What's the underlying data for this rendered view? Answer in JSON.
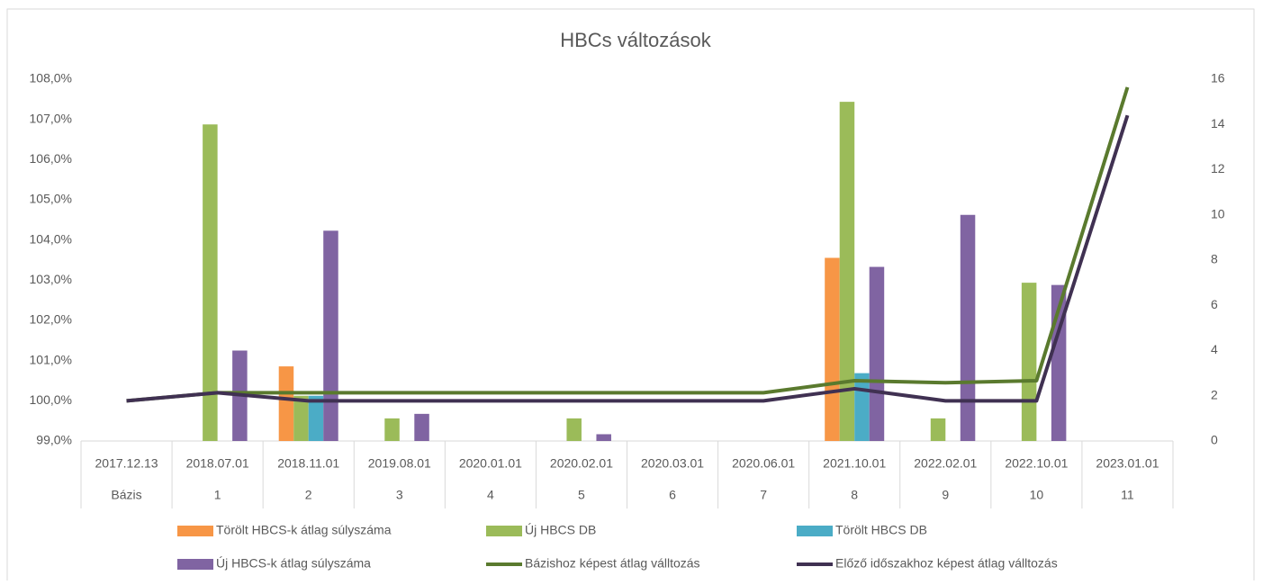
{
  "chart_data": {
    "type": "bar_line",
    "title": "HBCs változások",
    "categories": [
      "2017.12.13",
      "2018.07.01",
      "2018.11.01",
      "2019.08.01",
      "2020.01.01",
      "2020.02.01",
      "2020.03.01",
      "2020.06.01",
      "2021.10.01",
      "2022.02.01",
      "2022.10.01",
      "2023.01.01"
    ],
    "category_labels": [
      "Bázis",
      "1",
      "2",
      "3",
      "4",
      "5",
      "6",
      "7",
      "8",
      "9",
      "10",
      "11"
    ],
    "ylim": [
      99,
      108
    ],
    "yticks": [
      {
        "value": 99,
        "label": "99,0%"
      },
      {
        "value": 100,
        "label": "100,0%"
      },
      {
        "value": 101,
        "label": "101,0%"
      },
      {
        "value": 102,
        "label": "102,0%"
      },
      {
        "value": 103,
        "label": "103,0%"
      },
      {
        "value": 104,
        "label": "104,0%"
      },
      {
        "value": 105,
        "label": "105,0%"
      },
      {
        "value": 106,
        "label": "106,0%"
      },
      {
        "value": 107,
        "label": "107,0%"
      },
      {
        "value": 108,
        "label": "108,0%"
      }
    ],
    "y2lim": [
      0,
      16
    ],
    "y2ticks": [
      0,
      2,
      4,
      6,
      8,
      10,
      12,
      14,
      16
    ],
    "series": [
      {
        "name": "Törölt HBCS-k átlag súlyszáma",
        "kind": "bar",
        "axis": "y2",
        "color": "#f79646",
        "values": [
          null,
          null,
          3.3,
          null,
          null,
          null,
          null,
          null,
          8.1,
          null,
          null,
          null
        ]
      },
      {
        "name": "Új HBCS DB",
        "kind": "bar",
        "axis": "y2",
        "color": "#9bbb59",
        "values": [
          null,
          14,
          2,
          1,
          null,
          1,
          null,
          null,
          15,
          1,
          7,
          null
        ]
      },
      {
        "name": "Törölt HBCS DB",
        "kind": "bar",
        "axis": "y2",
        "color": "#4bacc6",
        "values": [
          null,
          null,
          2,
          null,
          null,
          null,
          null,
          null,
          3,
          null,
          null,
          null
        ]
      },
      {
        "name": "Új HBCS-k átlag súlyszáma",
        "kind": "bar",
        "axis": "y2",
        "color": "#8064a2",
        "values": [
          null,
          4,
          9.3,
          1.2,
          null,
          0.3,
          null,
          null,
          7.7,
          10,
          6.9,
          null
        ]
      },
      {
        "name": "Bázishoz képest átlag válltozás",
        "kind": "line",
        "color": "#5a7a2e",
        "values": [
          100,
          100.2,
          100.2,
          100.2,
          100.2,
          100.2,
          100.2,
          100.2,
          100.5,
          100.45,
          100.5,
          107.8
        ]
      },
      {
        "name": "Előző időszakhoz képest átlag válltozás",
        "kind": "line",
        "color": "#403152",
        "values": [
          100,
          100.2,
          100,
          100,
          100,
          100,
          100,
          100,
          100.3,
          100,
          100,
          107.1
        ]
      }
    ]
  }
}
